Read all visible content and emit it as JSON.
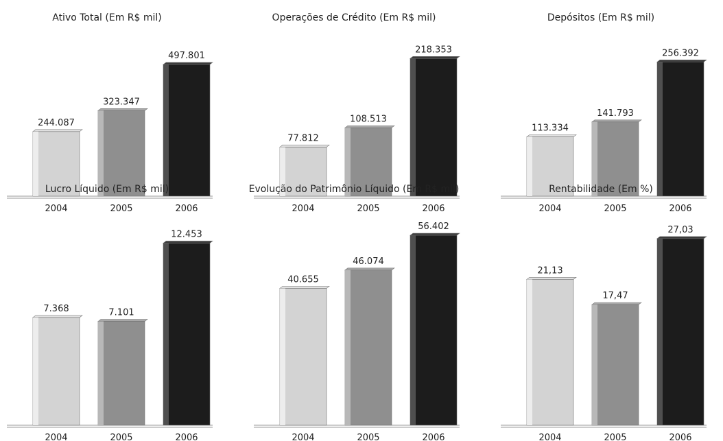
{
  "colors": {
    "bar_2004": "#d3d3d3",
    "bar_2005": "#8f8f8f",
    "bar_2006": "#1c1c1c",
    "baseline": "#9a9a9a",
    "text": "#222222"
  },
  "chart_data": [
    {
      "type": "bar",
      "title": "Ativo Total (Em R$ mil)",
      "categories": [
        "2004",
        "2005",
        "2006"
      ],
      "values": [
        244087,
        323347,
        497801
      ],
      "value_labels": [
        "244.087",
        "323.347",
        "497.801"
      ],
      "ylim": [
        0,
        560000
      ],
      "grid": false
    },
    {
      "type": "bar",
      "title": "Operações de Crédito (Em R$ mil)",
      "categories": [
        "2004",
        "2005",
        "2006"
      ],
      "values": [
        77812,
        108513,
        218353
      ],
      "value_labels": [
        "77.812",
        "108.513",
        "218.353"
      ],
      "ylim": [
        0,
        235000
      ],
      "grid": false
    },
    {
      "type": "bar",
      "title": "Depósitos (Em R$ mil)",
      "categories": [
        "2004",
        "2005",
        "2006"
      ],
      "values": [
        113334,
        141793,
        256392
      ],
      "value_labels": [
        "113.334",
        "141.793",
        "256.392"
      ],
      "ylim": [
        0,
        283000
      ],
      "grid": false
    },
    {
      "type": "bar",
      "title": "Lucro Líquido (Em R$ mil)",
      "categories": [
        "2004",
        "2005",
        "2006"
      ],
      "values": [
        7368,
        7101,
        12453
      ],
      "value_labels": [
        "7.368",
        "7.101",
        "12.453"
      ],
      "ylim": [
        0,
        14070
      ],
      "grid": false
    },
    {
      "type": "bar",
      "title": "Evolução do Patrimônio Líquido (Em R$ mil)",
      "categories": [
        "2004",
        "2005",
        "2006"
      ],
      "values": [
        40655,
        46074,
        56402
      ],
      "value_labels": [
        "40.655",
        "46.074",
        "56.402"
      ],
      "ylim": [
        0,
        61100
      ],
      "grid": false
    },
    {
      "type": "bar",
      "title": "Rentabilidade (Em %)",
      "categories": [
        "2004",
        "2005",
        "2006"
      ],
      "values": [
        21.13,
        17.47,
        27.03
      ],
      "value_labels": [
        "21,13",
        "17,47",
        "27,03"
      ],
      "ylim": [
        0,
        29.8
      ],
      "grid": false
    }
  ]
}
